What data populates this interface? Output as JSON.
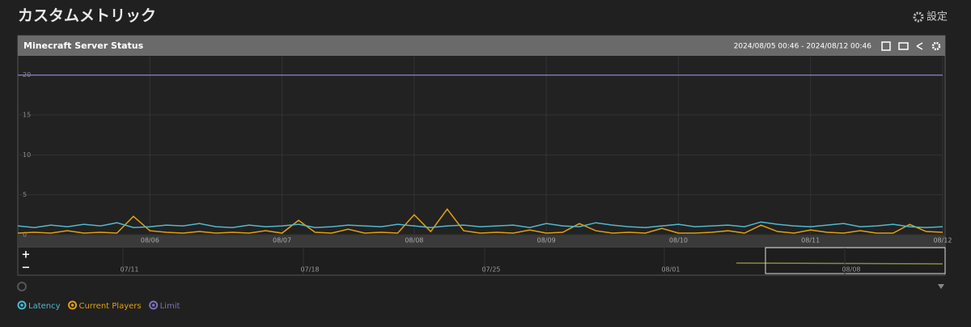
{
  "header": {
    "title": "カスタムメトリック",
    "settings": "設定"
  },
  "panel": {
    "title": "Minecraft Server Status",
    "range": "2024/08/05 00:46 - 2024/08/12 00:46"
  },
  "navigator": {
    "labels": [
      "07/11",
      "07/18",
      "07/25",
      "08/01",
      "08/08"
    ]
  },
  "chart_data": {
    "type": "line",
    "grid": true,
    "categories": [
      null,
      null,
      null,
      null,
      null,
      null,
      null,
      null,
      "08/06",
      null,
      null,
      null,
      null,
      null,
      null,
      null,
      "08/07",
      null,
      null,
      null,
      null,
      null,
      null,
      null,
      "08/08",
      null,
      null,
      null,
      null,
      null,
      null,
      null,
      "08/09",
      null,
      null,
      null,
      null,
      null,
      null,
      null,
      "08/10",
      null,
      null,
      null,
      null,
      null,
      null,
      null,
      "08/11",
      null,
      null,
      null,
      null,
      null,
      null,
      null,
      "08/12"
    ],
    "ylim": [
      0,
      22.3
    ],
    "yticks": [
      0,
      5,
      10,
      15,
      20
    ],
    "series": [
      {
        "name": "Latency",
        "color": "#4fb8cf",
        "values": [
          1.1,
          0.9,
          1.2,
          1.0,
          1.3,
          1.1,
          1.5,
          0.9,
          1.0,
          1.2,
          1.1,
          1.4,
          1.0,
          0.9,
          1.2,
          1.0,
          1.1,
          1.3,
          0.9,
          1.0,
          1.2,
          1.1,
          1.0,
          1.3,
          1.1,
          0.9,
          1.1,
          1.2,
          1.0,
          1.1,
          1.2,
          0.9,
          1.4,
          1.1,
          1.0,
          1.5,
          1.2,
          1.0,
          0.9,
          1.1,
          1.3,
          1.0,
          1.1,
          1.2,
          1.0,
          1.6,
          1.3,
          1.1,
          1.0,
          1.2,
          1.4,
          1.0,
          1.1,
          1.3,
          1.0,
          0.9,
          1.0
        ]
      },
      {
        "name": "Current Players",
        "color": "#e0a010",
        "values": [
          0.2,
          0.3,
          0.2,
          0.5,
          0.2,
          0.3,
          0.2,
          2.3,
          0.5,
          0.3,
          0.2,
          0.4,
          0.2,
          0.3,
          0.2,
          0.5,
          0.2,
          1.8,
          0.3,
          0.2,
          0.7,
          0.2,
          0.3,
          0.2,
          2.5,
          0.4,
          3.2,
          0.5,
          0.2,
          0.3,
          0.2,
          0.6,
          0.2,
          0.3,
          1.4,
          0.5,
          0.2,
          0.3,
          0.2,
          0.8,
          0.2,
          0.2,
          0.3,
          0.5,
          0.2,
          1.2,
          0.4,
          0.2,
          0.6,
          0.3,
          0.2,
          0.5,
          0.2,
          0.2,
          1.3,
          0.4,
          0.3
        ]
      },
      {
        "name": "Limit",
        "color": "#8070b8",
        "values": [
          20,
          20,
          20,
          20,
          20,
          20,
          20,
          20,
          20,
          20,
          20,
          20,
          20,
          20,
          20,
          20,
          20,
          20,
          20,
          20,
          20,
          20,
          20,
          20,
          20,
          20,
          20,
          20,
          20,
          20,
          20,
          20,
          20,
          20,
          20,
          20,
          20,
          20,
          20,
          20,
          20,
          20,
          20,
          20,
          20,
          20,
          20,
          20,
          20,
          20,
          20,
          20,
          20,
          20,
          20,
          20,
          20
        ]
      }
    ]
  }
}
